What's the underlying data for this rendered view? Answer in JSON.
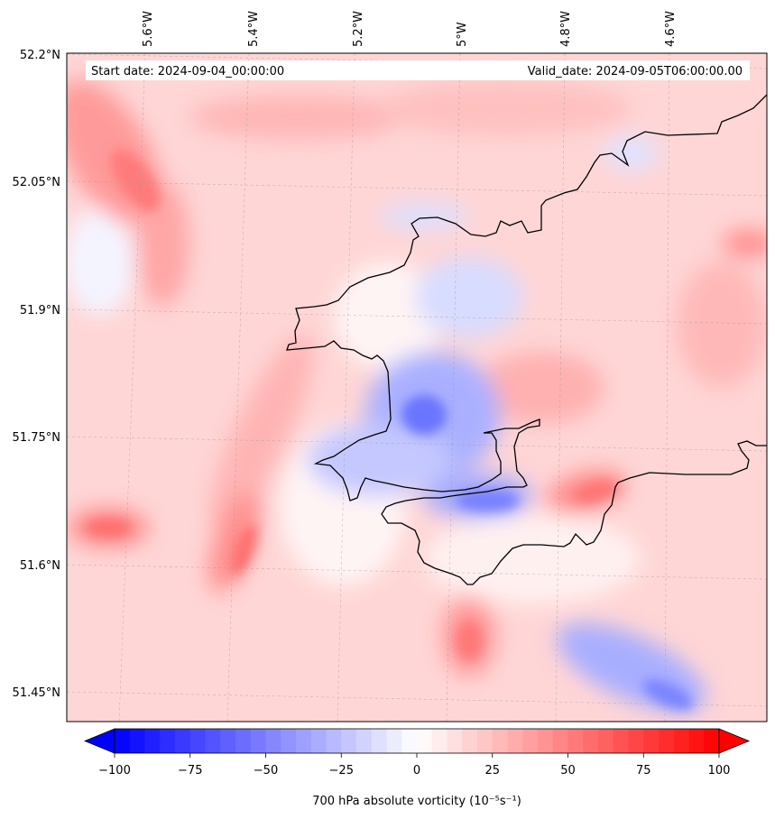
{
  "map": {
    "header": {
      "start": "Start date: 2024-09-04_00:00:00",
      "valid": "Valid_date: 2024-09-05T06:00:00.00"
    },
    "lon_labels": [
      "5.6°W",
      "5.4°W",
      "5.2°W",
      "5°W",
      "4.8°W",
      "4.6°W"
    ],
    "lat_labels": [
      "52.2°N",
      "52.05°N",
      "51.9°N",
      "51.75°N",
      "51.6°N",
      "51.45°N"
    ],
    "gridlines": "dashed grey"
  },
  "colorbar": {
    "label": "700 hPa absolute vorticity (10⁻⁵s⁻¹)",
    "ticks": [
      "−100",
      "−75",
      "−50",
      "−25",
      "0",
      "25",
      "50",
      "75",
      "100"
    ],
    "range": [
      -100,
      100
    ],
    "levels": 40,
    "extend": "both",
    "cmap": "bwr",
    "colors": {
      "low": "#0000ff",
      "mid": "#ffffff",
      "high": "#ff0000"
    }
  },
  "field_features": {
    "background": "weakly positive (light red)",
    "negative_centres": [
      "Milford Haven / Pembroke estuary",
      "Bristol Channel south-east corner"
    ],
    "positive_bands": [
      "north-west corner",
      "southwest diagonal band",
      "south-central sea",
      "Carmarthen Bay east"
    ]
  }
}
